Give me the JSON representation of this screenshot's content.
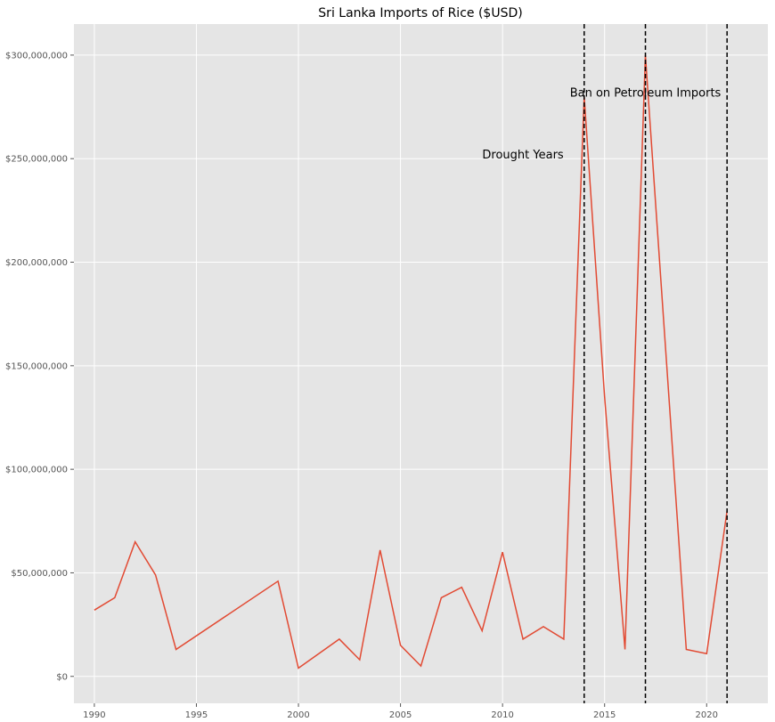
{
  "chart_data": {
    "type": "line",
    "title": "Sri Lanka Imports of Rice ($USD)",
    "xlabel": "",
    "ylabel": "",
    "xlim": [
      1989,
      2023
    ],
    "ylim": [
      -13000000,
      315000000
    ],
    "grid": true,
    "x_ticks": [
      1990,
      1995,
      2000,
      2005,
      2010,
      2015,
      2020
    ],
    "y_ticks": [
      0,
      50000000,
      100000000,
      150000000,
      200000000,
      250000000,
      300000000
    ],
    "y_tick_labels": [
      "$0",
      "$50,000,000",
      "$100,000,000",
      "$150,000,000",
      "$200,000,000",
      "$250,000,000",
      "$300,000,000"
    ],
    "series": [
      {
        "color": "#e24a33",
        "x": [
          1990,
          1991,
          1992,
          1993,
          1994,
          1999,
          2000,
          2002,
          2003,
          2004,
          2005,
          2006,
          2007,
          2008,
          2009,
          2010,
          2011,
          2012,
          2013,
          2014,
          2015,
          2016,
          2017,
          2019,
          2020,
          2021
        ],
        "y": [
          32000000,
          38000000,
          65000000,
          49000000,
          13000000,
          46000000,
          4000000,
          18000000,
          8000000,
          61000000,
          15000000,
          5000000,
          38000000,
          43000000,
          22000000,
          60000000,
          18000000,
          24000000,
          18000000,
          280000000,
          135000000,
          13000000,
          300000000,
          13000000,
          11000000,
          80000000
        ]
      }
    ],
    "vlines": [
      {
        "x": 2014,
        "style": "dashed",
        "color": "#000000"
      },
      {
        "x": 2017,
        "style": "dashed",
        "color": "#000000"
      },
      {
        "x": 2021,
        "style": "dashed",
        "color": "#000000"
      }
    ],
    "annotations": [
      {
        "text": "Drought Years",
        "x": 2011,
        "y": 250000000
      },
      {
        "text": "Ban on Petroleum Imports",
        "x": 2017,
        "y": 280000000
      }
    ],
    "colors": {
      "background": "#e5e5e5",
      "grid": "#ffffff",
      "line": "#e24a33",
      "vline": "#000000"
    }
  }
}
